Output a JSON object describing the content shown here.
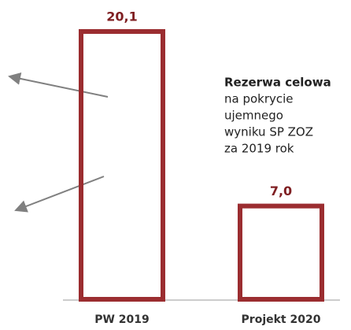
{
  "chart_data": {
    "type": "bar",
    "categories": [
      "PW 2019",
      "Projekt 2020"
    ],
    "values": [
      20.1,
      7.0
    ],
    "value_labels": [
      "20,1",
      "7,0"
    ],
    "color": "#9b2d30",
    "annotation": {
      "title": "Rezerwa celowa",
      "lines": [
        "na pokrycie",
        "ujemnego",
        "wyniku SP ZOZ",
        "za 2019 rok"
      ]
    }
  }
}
